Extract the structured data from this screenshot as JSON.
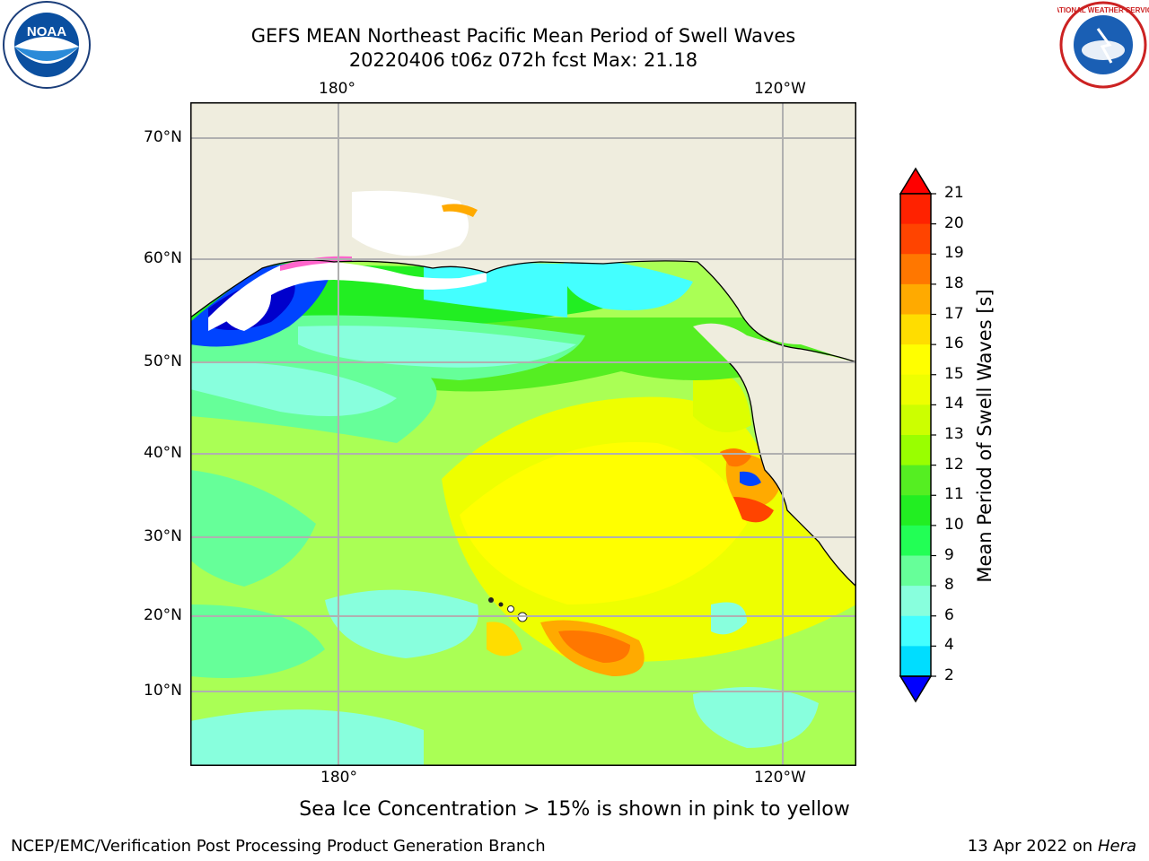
{
  "title": {
    "line1": "GEFS MEAN Northeast Pacific Mean Period of Swell Waves",
    "line2": "20220406 t06z 072h fcst   Max: 21.18"
  },
  "map": {
    "lon_labels_top": [
      "180°",
      "120°W"
    ],
    "lon_labels_bottom": [
      "180°",
      "120°W"
    ],
    "lat_labels": [
      "70°N",
      "60°N",
      "50°N",
      "40°N",
      "30°N",
      "20°N",
      "10°N"
    ],
    "land_color": "#efedde",
    "ocean_dominant_color": "#aaff55",
    "note": "Sea Ice Concentration > 15% is shown in pink to yellow"
  },
  "colorbar": {
    "label": "Mean Period of Swell Waves [s]",
    "ticks": [
      "21",
      "20",
      "19",
      "18",
      "17",
      "16",
      "15",
      "14",
      "13",
      "12",
      "11",
      "10",
      "9",
      "8",
      "6",
      "4",
      "2"
    ],
    "colors": [
      "#ff2200",
      "#ff4400",
      "#ff7700",
      "#ffaa00",
      "#ffdd00",
      "#ffff00",
      "#eeff00",
      "#ccff00",
      "#99ff00",
      "#55ee22",
      "#22ee22",
      "#22ff55",
      "#66ff99",
      "#88ffdd",
      "#44ffff",
      "#00ddff",
      "#0066ff"
    ],
    "over_color": "#ff0000",
    "under_color": "#0000ff"
  },
  "footer": {
    "left": "NCEP/EMC/Verification Post Processing Product Generation Branch",
    "date": "13 Apr 2022 on ",
    "machine": "Hera"
  },
  "logos": {
    "left": "NOAA",
    "right": "NATIONAL WEATHER SERVICE"
  }
}
